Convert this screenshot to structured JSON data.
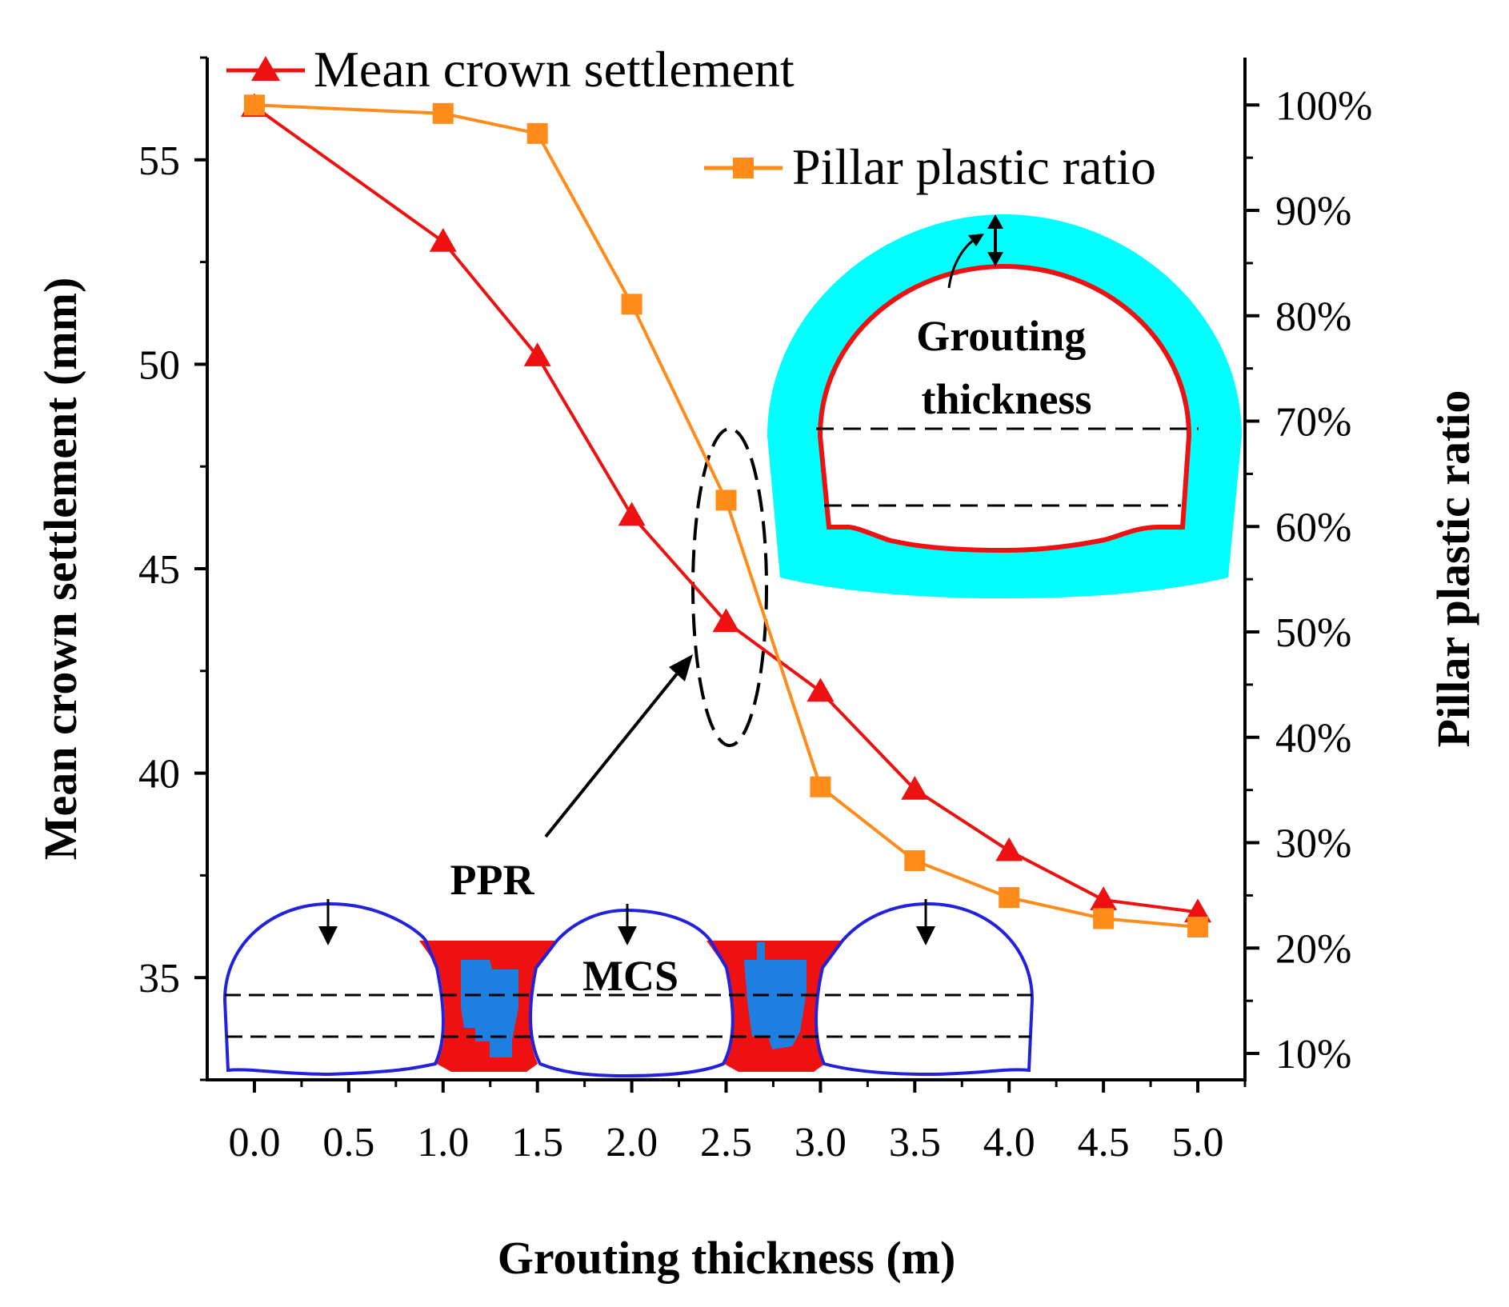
{
  "chart_data": {
    "type": "line",
    "title": "",
    "xlabel": "Grouting thickness (m)",
    "ylabel_left": "Mean crown settlement (mm)",
    "ylabel_right": "Pillar plastic ratio",
    "xlim": [
      -0.25,
      5.25
    ],
    "ylim_left": [
      32.5,
      57.5
    ],
    "ylim_right": [
      7.5,
      104.5
    ],
    "x_ticks": [
      "0.0",
      "0.5",
      "1.0",
      "1.5",
      "2.0",
      "2.5",
      "3.0",
      "3.5",
      "4.0",
      "4.5",
      "5.0"
    ],
    "y_left_ticks": [
      "35",
      "40",
      "45",
      "50",
      "55"
    ],
    "y_right_ticks": [
      "10%",
      "20%",
      "30%",
      "40%",
      "50%",
      "60%",
      "70%",
      "80%",
      "90%",
      "100%"
    ],
    "series": [
      {
        "name": "Mean crown settlement",
        "axis": "left",
        "marker": "triangle",
        "color": "#ee1111",
        "x": [
          0.0,
          1.0,
          1.5,
          2.0,
          2.5,
          3.0,
          3.5,
          4.0,
          4.5,
          5.0
        ],
        "values": [
          56.3,
          53.0,
          50.2,
          46.3,
          43.7,
          42.0,
          39.6,
          38.1,
          36.9,
          36.6
        ]
      },
      {
        "name": "Pillar plastic ratio",
        "axis": "right",
        "marker": "square",
        "color": "#ff8c1a",
        "x": [
          0.0,
          1.0,
          1.5,
          2.0,
          2.5,
          3.0,
          3.5,
          4.0,
          4.5,
          5.0
        ],
        "values": [
          100,
          99.2,
          97.3,
          81.1,
          62.5,
          35.3,
          28.3,
          24.8,
          22.8,
          22.0
        ]
      }
    ],
    "legend": [
      "Mean crown settlement",
      "Pillar plastic ratio"
    ],
    "annotations": {
      "grouting": "Grouting\nthickness",
      "ppr": "PPR",
      "mcs": "MCS"
    }
  }
}
